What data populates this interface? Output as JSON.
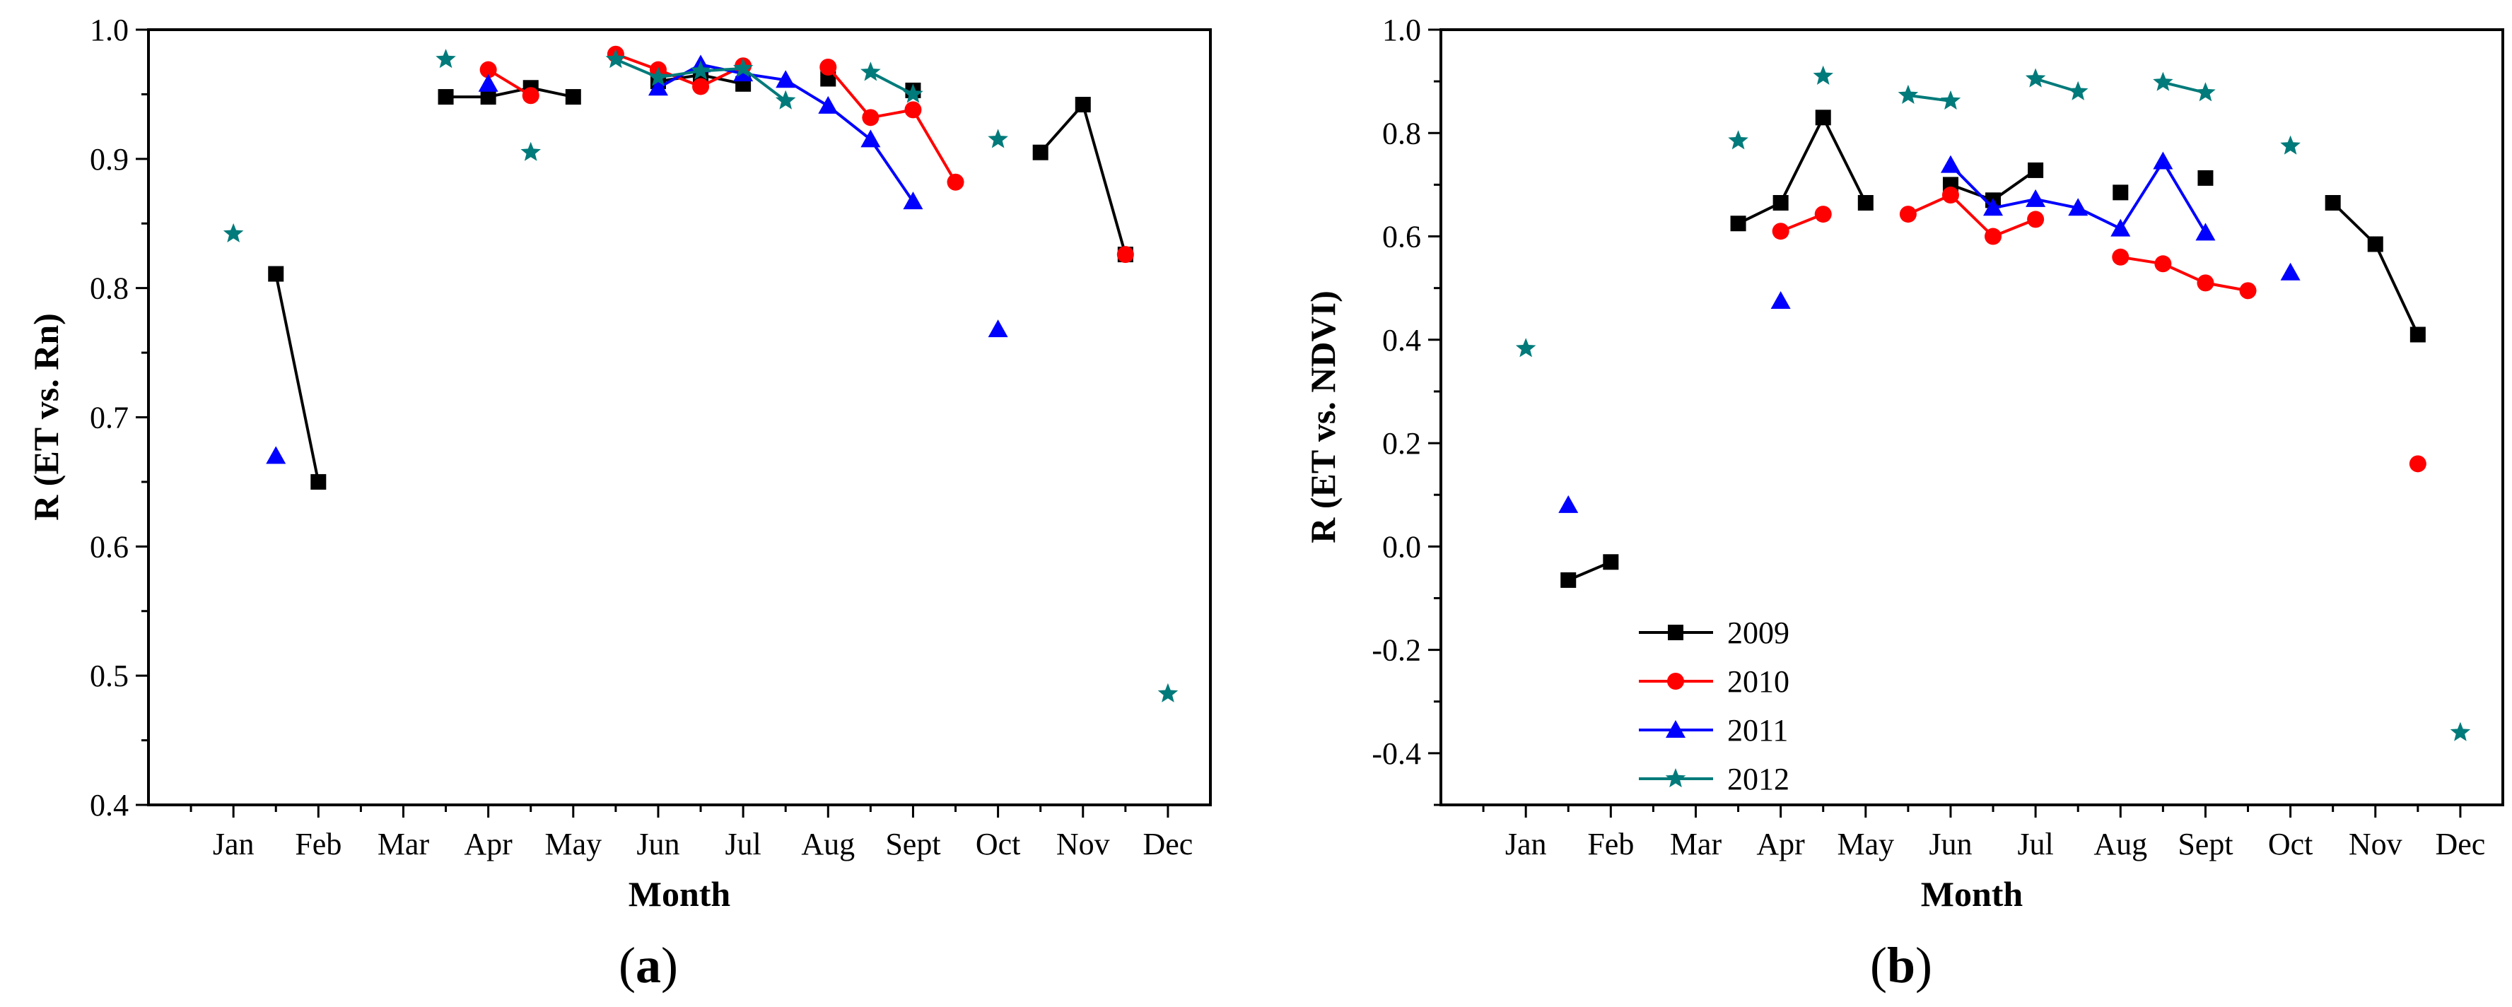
{
  "colors": {
    "2009": "#000000",
    "2010": "#ff0000",
    "2011": "#0000ff",
    "2012": "#007a7a"
  },
  "chart_data": [
    {
      "id": "a",
      "type": "line",
      "panel_label_open": "(",
      "panel_label": "a",
      "panel_label_close": ")",
      "xlabel": "Month",
      "ylabel": "R (ET vs. Rn)",
      "ylim": [
        0.4,
        1.0
      ],
      "xlim": [
        0,
        12.5
      ],
      "yticks": [
        0.4,
        0.5,
        0.6,
        0.7,
        0.8,
        0.9,
        1.0
      ],
      "ytick_labels": [
        "0.4",
        "0.5",
        "0.6",
        "0.7",
        "0.8",
        "0.9",
        "1.0"
      ],
      "categories": [
        "Jan",
        "Feb",
        "Mar",
        "Apr",
        "May",
        "Jun",
        "Jul",
        "Aug",
        "Sept",
        "Oct",
        "Nov",
        "Dec"
      ],
      "legend": false,
      "series": [
        {
          "name": "2009",
          "marker": "square",
          "segments": [
            [
              [
                1.5,
                0.811
              ],
              [
                2.0,
                0.65
              ]
            ],
            [
              [
                3.5,
                0.948
              ],
              [
                4.0,
                0.948
              ],
              [
                4.5,
                0.955
              ],
              [
                5.0,
                0.948
              ]
            ],
            [
              [
                6.0,
                0.96
              ],
              [
                6.5,
                0.965
              ],
              [
                7.0,
                0.958
              ]
            ],
            [
              [
                8.0,
                0.962
              ]
            ],
            [
              [
                9.0,
                0.953
              ]
            ],
            [
              [
                10.5,
                0.905
              ],
              [
                11.0,
                0.942
              ],
              [
                11.5,
                0.826
              ]
            ]
          ]
        },
        {
          "name": "2010",
          "marker": "circle",
          "segments": [
            [
              [
                4.0,
                0.969
              ],
              [
                4.5,
                0.949
              ]
            ],
            [
              [
                5.5,
                0.981
              ],
              [
                6.0,
                0.969
              ],
              [
                6.5,
                0.956
              ],
              [
                7.0,
                0.972
              ]
            ],
            [
              [
                8.0,
                0.971
              ],
              [
                8.5,
                0.932
              ],
              [
                9.0,
                0.938
              ],
              [
                9.5,
                0.882
              ]
            ],
            [
              [
                11.5,
                0.826
              ]
            ]
          ]
        },
        {
          "name": "2011",
          "marker": "triangle",
          "segments": [
            [
              [
                1.5,
                0.67
              ]
            ],
            [
              [
                4.0,
                0.958
              ]
            ],
            [
              [
                6.0,
                0.955
              ],
              [
                6.5,
                0.973
              ],
              [
                7.0,
                0.966
              ],
              [
                7.5,
                0.961
              ],
              [
                8.0,
                0.941
              ],
              [
                8.5,
                0.915
              ],
              [
                9.0,
                0.867
              ]
            ],
            [
              [
                10.0,
                0.768
              ]
            ]
          ]
        },
        {
          "name": "2012",
          "marker": "star",
          "segments": [
            [
              [
                1.0,
                0.842
              ]
            ],
            [
              [
                3.5,
                0.977
              ]
            ],
            [
              [
                4.5,
                0.905
              ]
            ],
            [
              [
                5.5,
                0.977
              ],
              [
                6.0,
                0.963
              ],
              [
                6.5,
                0.968
              ],
              [
                7.0,
                0.97
              ],
              [
                7.5,
                0.945
              ]
            ],
            [
              [
                8.5,
                0.967
              ],
              [
                9.0,
                0.95
              ]
            ],
            [
              [
                10.0,
                0.915
              ]
            ],
            [
              [
                12.0,
                0.486
              ]
            ]
          ]
        }
      ]
    },
    {
      "id": "b",
      "type": "line",
      "panel_label_open": "(",
      "panel_label": "b",
      "panel_label_close": ")",
      "xlabel": "Month",
      "ylabel": "R (ET vs. NDVI)",
      "ylim": [
        -0.5,
        1.0
      ],
      "xlim": [
        0,
        12.5
      ],
      "yticks": [
        -0.4,
        -0.2,
        0.0,
        0.2,
        0.4,
        0.6,
        0.8,
        1.0
      ],
      "ytick_labels": [
        "-0.4",
        "-0.2",
        "0.0",
        "0.2",
        "0.4",
        "0.6",
        "0.8",
        "1.0"
      ],
      "categories": [
        "Jan",
        "Feb",
        "Mar",
        "Apr",
        "May",
        "Jun",
        "Jul",
        "Aug",
        "Sept",
        "Oct",
        "Nov",
        "Dec"
      ],
      "legend": true,
      "legend_position": "lower-left",
      "series": [
        {
          "name": "2009",
          "marker": "square",
          "segments": [
            [
              [
                1.5,
                -0.065
              ],
              [
                2.0,
                -0.03
              ]
            ],
            [
              [
                3.5,
                0.625
              ],
              [
                4.0,
                0.665
              ],
              [
                4.5,
                0.83
              ],
              [
                5.0,
                0.665
              ]
            ],
            [
              [
                6.0,
                0.7
              ],
              [
                6.5,
                0.67
              ],
              [
                7.0,
                0.728
              ]
            ],
            [
              [
                8.0,
                0.685
              ]
            ],
            [
              [
                9.0,
                0.713
              ]
            ],
            [
              [
                10.5,
                0.665
              ],
              [
                11.0,
                0.585
              ],
              [
                11.5,
                0.41
              ]
            ]
          ]
        },
        {
          "name": "2010",
          "marker": "circle",
          "segments": [
            [
              [
                4.0,
                0.61
              ],
              [
                4.5,
                0.643
              ]
            ],
            [
              [
                5.5,
                0.643
              ],
              [
                6.0,
                0.68
              ],
              [
                6.5,
                0.6
              ],
              [
                7.0,
                0.633
              ]
            ],
            [
              [
                8.0,
                0.56
              ],
              [
                8.5,
                0.547
              ],
              [
                9.0,
                0.51
              ],
              [
                9.5,
                0.495
              ]
            ],
            [
              [
                11.5,
                0.16
              ]
            ]
          ]
        },
        {
          "name": "2011",
          "marker": "triangle",
          "segments": [
            [
              [
                1.5,
                0.08
              ]
            ],
            [
              [
                4.0,
                0.475
              ]
            ],
            [
              [
                6.0,
                0.738
              ],
              [
                6.5,
                0.655
              ],
              [
                7.0,
                0.672
              ],
              [
                7.5,
                0.655
              ],
              [
                8.0,
                0.615
              ],
              [
                8.5,
                0.745
              ],
              [
                9.0,
                0.607
              ]
            ],
            [
              [
                10.0,
                0.53
              ]
            ]
          ]
        },
        {
          "name": "2012",
          "marker": "star",
          "segments": [
            [
              [
                1.0,
                0.383
              ]
            ],
            [
              [
                3.5,
                0.785
              ]
            ],
            [
              [
                4.5,
                0.91
              ]
            ],
            [
              [
                5.5,
                0.873
              ],
              [
                6.0,
                0.862
              ]
            ],
            [
              [
                7.0,
                0.905
              ],
              [
                7.5,
                0.88
              ]
            ],
            [
              [
                8.5,
                0.898
              ],
              [
                9.0,
                0.878
              ]
            ],
            [
              [
                10.0,
                0.775
              ]
            ],
            [
              [
                12.0,
                -0.36
              ]
            ]
          ]
        }
      ]
    }
  ]
}
